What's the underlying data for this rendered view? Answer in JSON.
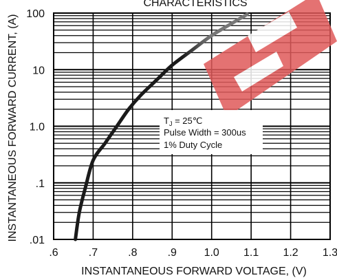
{
  "chart_data": {
    "type": "line",
    "title": "CHARACTERISTICS",
    "xlabel": "INSTANTANEOUS FORWARD VOLTAGE, (V)",
    "ylabel": "INSTANTANEOUS FORWARD CURRENT, (A)",
    "xlim": [
      0.6,
      1.3
    ],
    "ylim": [
      0.01,
      100
    ],
    "y_scale": "log",
    "grid": true,
    "x_ticks": [
      ".6",
      ".7",
      ".8",
      ".9",
      "1.0",
      "1.1",
      "1.2",
      "1.3"
    ],
    "y_ticks": [
      ".01",
      ".1",
      "1.0",
      "10",
      "100"
    ],
    "series": [
      {
        "x": [
          0.655,
          0.665,
          0.68,
          0.7,
          0.73,
          0.76,
          0.79,
          0.82,
          0.86,
          0.9,
          0.95,
          1.0,
          1.05,
          1.09
        ],
        "values": [
          0.01,
          0.03,
          0.08,
          0.25,
          0.5,
          1.0,
          2.0,
          3.5,
          6.5,
          12,
          22,
          40,
          65,
          95
        ]
      }
    ],
    "annotations": {
      "temp_prefix": "T",
      "temp_sub": "J",
      "temp_value": " = 25℃",
      "pulse_width": "Pulse Width = 300us",
      "duty_cycle": "1% Duty Cycle"
    },
    "colors": {
      "line": "#1a1a1a",
      "line_faded": "#777777",
      "grid": "#000000",
      "watermark": "#e05a5a"
    }
  }
}
